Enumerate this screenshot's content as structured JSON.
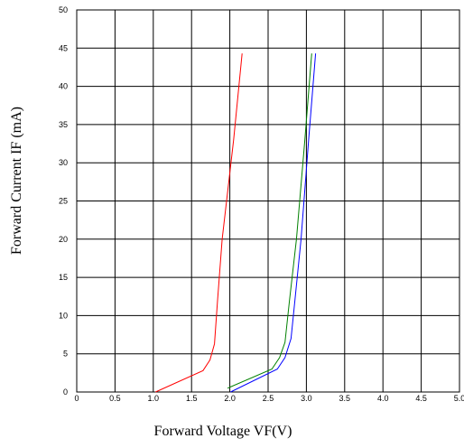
{
  "chart_data": {
    "type": "line",
    "xlabel": "Forward Voltage VF(V)",
    "ylabel": "Forward Current IF (mA)",
    "xlim": [
      0,
      5.0
    ],
    "ylim": [
      0,
      50
    ],
    "x_ticks": [
      "0",
      "0.5",
      "1.0",
      "1.5",
      "2.0",
      "2.5",
      "3.0",
      "3.5",
      "4.0",
      "4.5",
      "5.0"
    ],
    "y_ticks": [
      "0",
      "5",
      "10",
      "15",
      "20",
      "25",
      "30",
      "35",
      "40",
      "45",
      "50"
    ],
    "x_tick_values": [
      0,
      0.5,
      1.0,
      1.5,
      2.0,
      2.5,
      3.0,
      3.5,
      4.0,
      4.5,
      5.0
    ],
    "y_tick_values": [
      0,
      5,
      10,
      15,
      20,
      25,
      30,
      35,
      40,
      45,
      50
    ],
    "grid": true,
    "series": [
      {
        "color": "#ff0000",
        "x": [
          1.03,
          1.65,
          1.74,
          1.8,
          1.84,
          1.9,
          2.05,
          2.16
        ],
        "y": [
          0,
          2.8,
          4.2,
          6.3,
          12,
          20,
          33,
          44.3
        ]
      },
      {
        "color": "#008000",
        "x": [
          1.97,
          2.55,
          2.65,
          2.72,
          2.78,
          2.87,
          2.98,
          3.07
        ],
        "y": [
          0.5,
          3.0,
          4.5,
          6.5,
          12,
          20,
          33,
          44.3
        ]
      },
      {
        "color": "#0000ff",
        "x": [
          2.01,
          2.62,
          2.72,
          2.8,
          2.85,
          2.93,
          3.03,
          3.12
        ],
        "y": [
          0,
          3.0,
          4.5,
          7,
          12,
          20,
          33,
          44.3
        ]
      }
    ]
  }
}
